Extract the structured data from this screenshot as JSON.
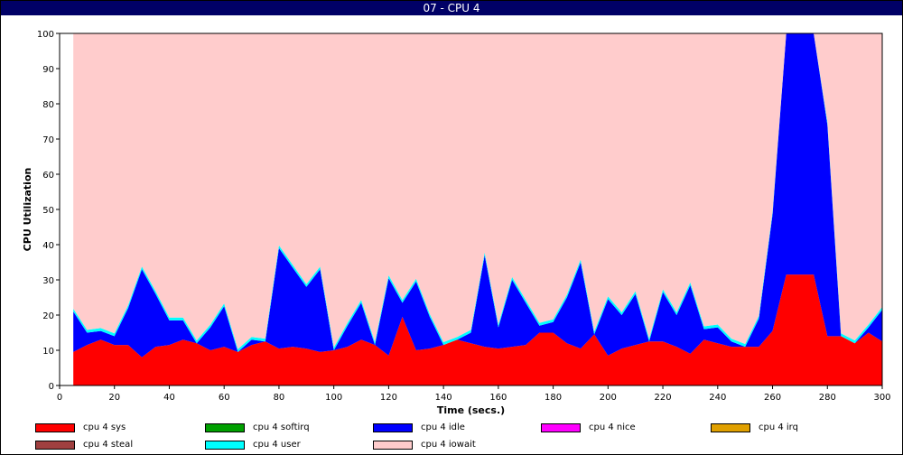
{
  "window": {
    "title": "07  -  CPU 4"
  },
  "chart_data": {
    "type": "area",
    "stacked": true,
    "xlabel": "Time (secs.)",
    "ylabel": "CPU Utilization",
    "xlim": [
      0,
      300
    ],
    "ylim": [
      0,
      100
    ],
    "x_ticks": [
      0,
      20,
      40,
      60,
      80,
      100,
      120,
      140,
      160,
      180,
      200,
      220,
      240,
      260,
      280,
      300
    ],
    "y_ticks": [
      0,
      10,
      20,
      30,
      40,
      50,
      60,
      70,
      80,
      90,
      100
    ],
    "grid": false,
    "legend_position": "bottom",
    "x": [
      5,
      10,
      15,
      20,
      25,
      30,
      35,
      40,
      45,
      50,
      55,
      60,
      65,
      70,
      75,
      80,
      85,
      90,
      95,
      100,
      105,
      110,
      115,
      120,
      125,
      130,
      135,
      140,
      145,
      150,
      155,
      160,
      165,
      170,
      175,
      180,
      185,
      190,
      195,
      200,
      205,
      210,
      215,
      220,
      225,
      230,
      235,
      240,
      245,
      250,
      255,
      260,
      265,
      270,
      275,
      280,
      285,
      290,
      295,
      300
    ],
    "series": [
      {
        "name": "cpu 4 sys",
        "color": "#ff0000",
        "values": [
          9.5,
          11.5,
          13,
          11.5,
          11.5,
          8,
          11,
          11.5,
          13,
          12,
          10,
          11,
          9.5,
          11.5,
          12.5,
          10.5,
          11,
          10.5,
          9.5,
          10,
          11,
          13,
          11.5,
          8.5,
          19.5,
          10,
          10.5,
          11.5,
          13,
          12,
          11,
          10.5,
          11,
          11.5,
          15,
          15,
          12,
          10.5,
          14.5,
          8.5,
          10.5,
          11.5,
          12.5,
          12.5,
          11,
          9,
          13,
          12,
          11,
          11,
          11,
          15.5,
          31.5,
          31.5,
          31.5,
          14,
          14,
          12,
          15,
          12.5
        ]
      },
      {
        "name": "cpu 4 softirq",
        "color": "#00a000",
        "values": [
          0,
          0,
          0,
          0,
          0,
          0,
          0,
          0,
          0,
          0,
          0,
          0,
          0,
          0,
          0,
          0,
          0,
          0,
          0,
          0,
          0,
          0,
          0,
          0,
          0,
          0,
          0,
          0,
          0,
          0,
          0,
          0,
          0,
          0,
          0,
          0,
          0,
          0,
          0,
          0,
          0,
          0,
          0,
          0,
          0,
          0,
          0,
          0,
          0,
          0,
          0,
          0,
          0,
          0,
          0,
          0,
          0,
          0,
          0,
          0
        ]
      },
      {
        "name": "cpu 4 idle",
        "color": "#0000ff",
        "values": [
          11.5,
          3.5,
          2.5,
          2.5,
          10.5,
          25,
          15,
          7,
          5.5,
          0,
          6.5,
          11.5,
          0,
          1.5,
          0,
          28.5,
          22.5,
          17.5,
          23.5,
          0,
          6,
          10.5,
          0,
          22,
          4,
          19.5,
          9,
          0,
          0,
          3,
          26,
          6,
          19,
          12,
          2,
          3,
          13,
          24.5,
          0,
          16,
          9.5,
          14.5,
          0,
          14,
          9,
          19.5,
          3,
          4.5,
          1.5,
          0,
          8,
          33,
          68.5,
          68.5,
          68.5,
          60,
          0,
          0,
          1.5,
          9
        ]
      },
      {
        "name": "cpu 4 nice",
        "color": "#ff00ff",
        "values": [
          0,
          0,
          0,
          0,
          0,
          0,
          0,
          0,
          0,
          0,
          0,
          0,
          0,
          0,
          0,
          0,
          0,
          0,
          0,
          0,
          0,
          0,
          0,
          0,
          0,
          0,
          0,
          0,
          0,
          0,
          0,
          0,
          0,
          0,
          0,
          0,
          0,
          0,
          0,
          0,
          0,
          0,
          0,
          0,
          0,
          0,
          0,
          0,
          0,
          0,
          0,
          0,
          0,
          0,
          0,
          0,
          0,
          0,
          0,
          0
        ]
      },
      {
        "name": "cpu 4 irq",
        "color": "#e0a000",
        "values": [
          0,
          0,
          0,
          0,
          0,
          0,
          0,
          0,
          0,
          0,
          0,
          0,
          0,
          0,
          0,
          0,
          0,
          0,
          0,
          0,
          0,
          0,
          0,
          0,
          0,
          0,
          0,
          0,
          0,
          0,
          0,
          0,
          0,
          0,
          0,
          0,
          0,
          0,
          0,
          0,
          0,
          0,
          0,
          0,
          0,
          0,
          0,
          0,
          0,
          0,
          0,
          0,
          0,
          0,
          0,
          0,
          0,
          0,
          0,
          0
        ]
      },
      {
        "name": "cpu 4 steal",
        "color": "#a04040",
        "values": [
          0,
          0,
          0,
          0,
          0,
          0,
          0,
          0,
          0,
          0,
          0,
          0,
          0,
          0,
          0,
          0,
          0,
          0,
          0,
          0,
          0,
          0,
          0,
          0,
          0,
          0,
          0,
          0,
          0,
          0,
          0,
          0,
          0,
          0,
          0,
          0,
          0,
          0,
          0,
          0,
          0,
          0,
          0,
          0,
          0,
          0,
          0,
          0,
          0,
          0,
          0,
          0,
          0,
          0,
          0,
          0,
          0,
          0,
          0,
          0
        ]
      },
      {
        "name": "cpu 4 user",
        "color": "#00ffff",
        "values": [
          0.8,
          0.8,
          0.8,
          0.8,
          0.8,
          0.8,
          0.8,
          0.8,
          0.8,
          0.8,
          0.8,
          0.8,
          0.8,
          0.8,
          0.8,
          0.8,
          0.8,
          0.8,
          0.8,
          0.8,
          0.8,
          0.8,
          0.8,
          0.8,
          0.8,
          0.8,
          0.8,
          0.8,
          0.8,
          0.8,
          0.8,
          0.8,
          0.8,
          0.8,
          0.8,
          0.8,
          0.8,
          0.8,
          0.8,
          0.8,
          0.8,
          0.8,
          0.8,
          0.8,
          0.8,
          0.8,
          0.8,
          0.8,
          0.8,
          0.8,
          0.8,
          0.8,
          0,
          0,
          0,
          0.8,
          0.8,
          0.8,
          0.8,
          0.8
        ]
      },
      {
        "name": "cpu 4 iowait",
        "color": "#ffcccc",
        "values": [
          78.2,
          84.2,
          83.7,
          85.2,
          77.2,
          66.2,
          73.2,
          80.7,
          80.7,
          87.2,
          82.7,
          76.7,
          89.7,
          86.2,
          86.7,
          60.2,
          65.7,
          71.2,
          66.2,
          89.2,
          82.2,
          75.7,
          87.7,
          68.7,
          75.7,
          69.7,
          79.7,
          87.7,
          86.2,
          84.2,
          62.2,
          82.7,
          69.2,
          75.7,
          82.2,
          81.2,
          74.2,
          64.2,
          84.7,
          74.7,
          79.2,
          73.2,
          86.7,
          72.7,
          79.2,
          70.7,
          83.2,
          82.7,
          86.7,
          88.2,
          80.2,
          50.7,
          0,
          0,
          0,
          25.2,
          85.2,
          87.2,
          82.7,
          77.7
        ]
      }
    ]
  }
}
